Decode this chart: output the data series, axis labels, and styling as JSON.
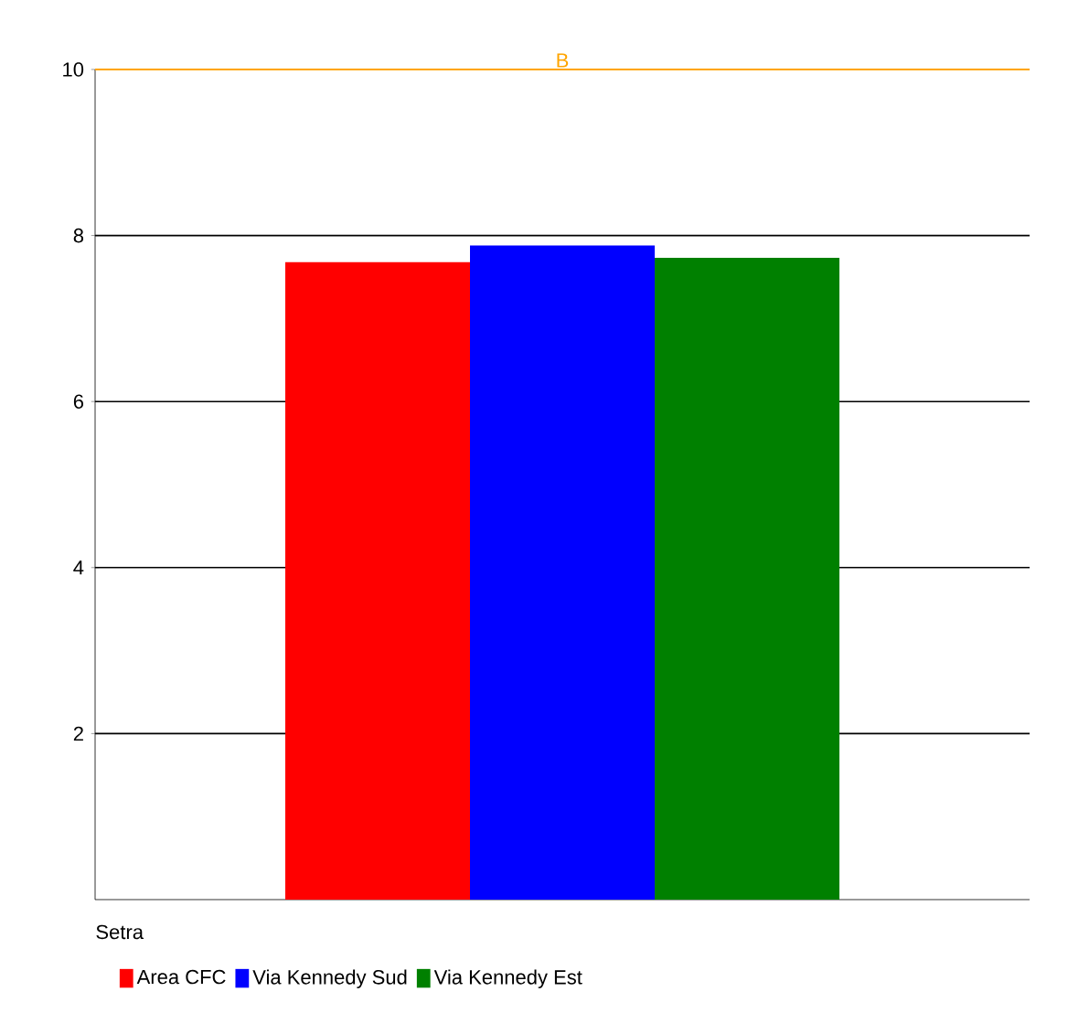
{
  "chart_data": {
    "type": "bar",
    "legend_title": "Setra",
    "categories": [
      null
    ],
    "series": [
      {
        "name": "Area CFC",
        "color": "#ff0000",
        "values": [
          7.68
        ]
      },
      {
        "name": "Via Kennedy Sud",
        "color": "#0000ff",
        "values": [
          7.88
        ]
      },
      {
        "name": "Via Kennedy Est",
        "color": "#008000",
        "values": [
          7.73
        ]
      }
    ],
    "ylim": [
      0,
      10
    ],
    "yticks": [
      2,
      4,
      6,
      8,
      10
    ],
    "grid": "y",
    "legend": "bottom",
    "ref_lines": [
      {
        "axis": "y",
        "value": 10,
        "label": "B",
        "color": "#ffa500"
      }
    ]
  }
}
